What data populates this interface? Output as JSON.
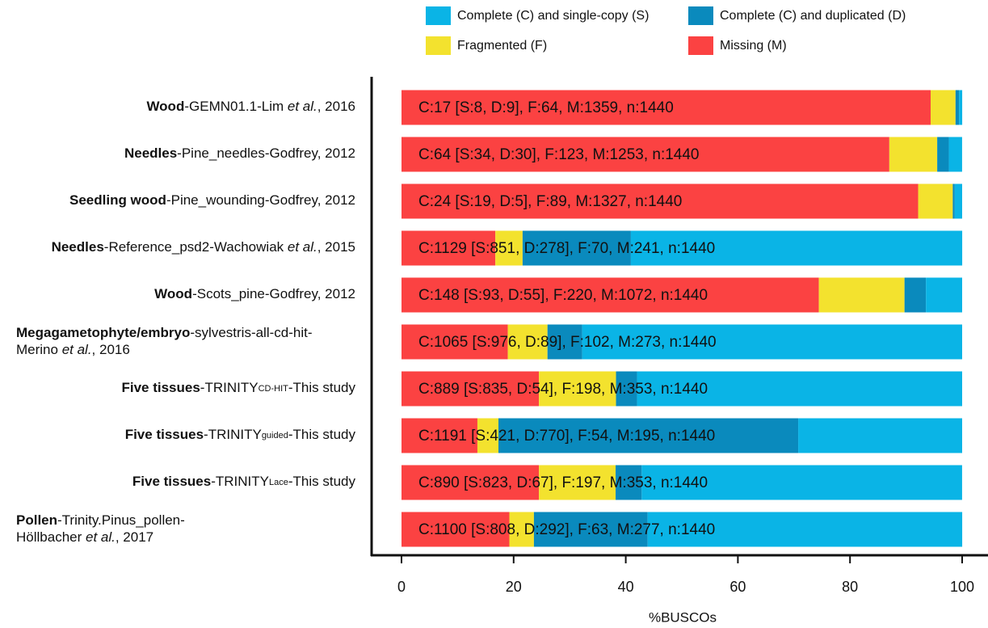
{
  "chart_data": {
    "type": "stacked-bar-horizontal",
    "categories": [
      "Wood-GEMN01.1-Lim et al., 2016",
      "Needles-Pine_needles-Godfrey, 2012",
      "Seedling wood-Pine_wounding-Godfrey, 2012",
      "Needles-Reference_psd2-Wachowiak et al., 2015",
      "Wood-Scots_pine-Godfrey, 2012",
      "Megagametophyte/embryo-sylvestris-all-cd-hit-Merino et al., 2016",
      "Five tissues-TRINITYCD-HIT-This study",
      "Five tissues-TRINITYguided-This study",
      "Five tissues-TRINITYLace-This study",
      "Pollen-Trinity.Pinus_pollen-Höllbacher et al., 2017"
    ],
    "series": [
      {
        "name": "Complete (C) and single-copy (S)",
        "color": "#0ab4e6",
        "values": [
          0.56,
          2.36,
          1.32,
          59.1,
          6.46,
          67.78,
          57.99,
          29.24,
          57.15,
          56.11
        ]
      },
      {
        "name": "Complete (C) and duplicated (D)",
        "color": "#0a8abd",
        "values": [
          0.63,
          2.08,
          0.35,
          19.31,
          3.82,
          6.18,
          3.75,
          53.47,
          4.65,
          20.28
        ]
      },
      {
        "name": "Fragmented (F)",
        "color": "#f3e22e",
        "values": [
          4.44,
          8.54,
          6.18,
          4.86,
          15.28,
          7.08,
          13.75,
          3.75,
          13.68,
          4.38
        ]
      },
      {
        "name": "Missing (M)",
        "color": "#fb4242",
        "values": [
          94.38,
          87.01,
          92.15,
          16.74,
          74.44,
          18.96,
          24.51,
          13.54,
          24.51,
          19.24
        ]
      }
    ],
    "bar_labels": [
      "C:17 [S:8, D:9], F:64, M:1359, n:1440",
      "C:64 [S:34, D:30], F:123, M:1253, n:1440",
      "C:24 [S:19, D:5], F:89, M:1327, n:1440",
      "C:1129 [S:851, D:278], F:70, M:241, n:1440",
      "C:148 [S:93, D:55], F:220, M:1072, n:1440",
      "C:1065 [S:976, D:89], F:102, M:273, n:1440",
      "C:889 [S:835, D:54], F:198, M:353, n:1440",
      "C:1191 [S:421, D:770], F:54, M:195, n:1440",
      "C:890 [S:823, D:67], F:197, M:353, n:1440",
      "C:1100 [S:808, D:292], F:63, M:277, n:1440"
    ],
    "xlabel": "%BUSCOs",
    "xlim": [
      0,
      100
    ],
    "xticks": [
      0,
      20,
      40,
      60,
      80,
      100
    ]
  }
}
